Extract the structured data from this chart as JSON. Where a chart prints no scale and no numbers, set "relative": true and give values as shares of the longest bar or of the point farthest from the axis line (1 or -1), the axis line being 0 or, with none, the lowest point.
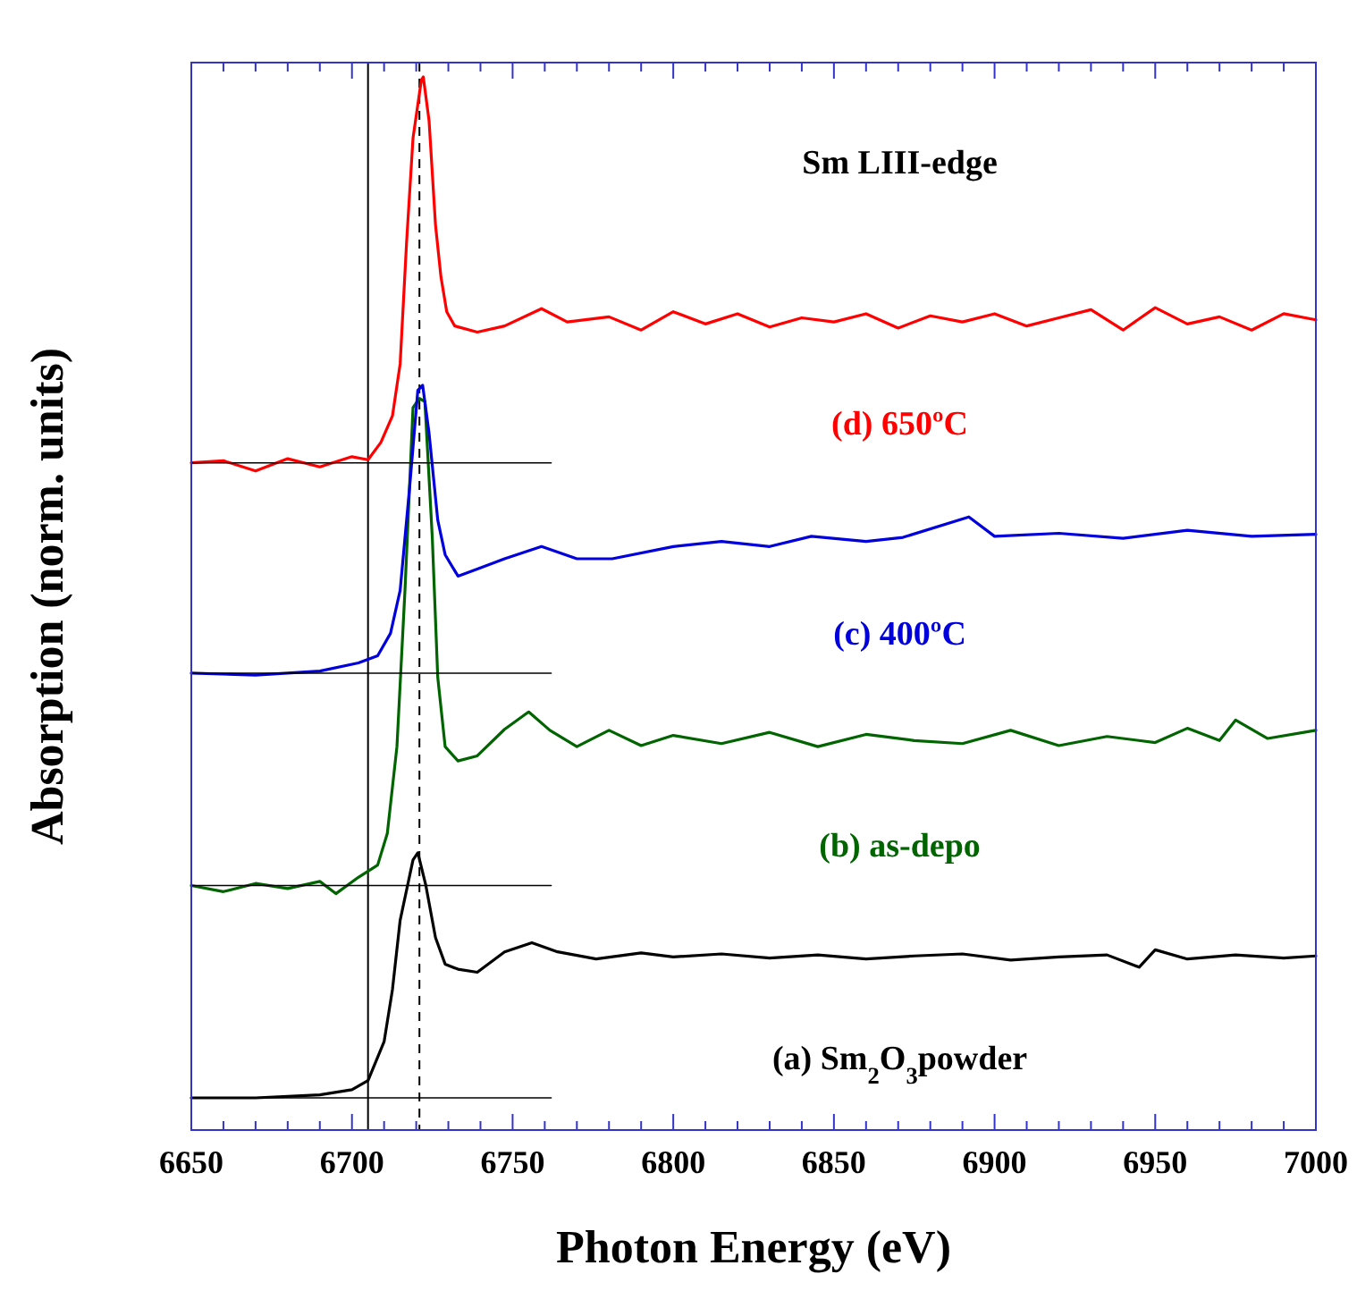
{
  "chart_data": {
    "type": "line",
    "relative": true,
    "xlabel": "Photon Energy (eV)",
    "ylabel": "Absorption (norm. units)",
    "annotations": [
      "Sm LIII-edge"
    ],
    "xlim": [
      6650,
      7000
    ],
    "xticks": [
      6650,
      {
        "value": 6660,
        "label": null
      },
      {
        "value": 6670,
        "label": null
      },
      {
        "value": 6680,
        "label": null
      },
      {
        "value": 6690,
        "label": null
      },
      6700,
      {
        "value": 6710,
        "label": null
      },
      {
        "value": 6720,
        "label": null
      },
      {
        "value": 6730,
        "label": null
      },
      {
        "value": 6740,
        "label": null
      },
      6750,
      {
        "value": 6760,
        "label": null
      },
      {
        "value": 6770,
        "label": null
      },
      {
        "value": 6780,
        "label": null
      },
      {
        "value": 6790,
        "label": null
      },
      6800,
      {
        "value": 6810,
        "label": null
      },
      {
        "value": 6820,
        "label": null
      },
      {
        "value": 6830,
        "label": null
      },
      {
        "value": 6840,
        "label": null
      },
      6850,
      {
        "value": 6860,
        "label": null
      },
      {
        "value": 6870,
        "label": null
      },
      {
        "value": 6880,
        "label": null
      },
      {
        "value": 6890,
        "label": null
      },
      6900,
      {
        "value": 6910,
        "label": null
      },
      {
        "value": 6920,
        "label": null
      },
      {
        "value": 6930,
        "label": null
      },
      {
        "value": 6940,
        "label": null
      },
      6950,
      {
        "value": 6960,
        "label": null
      },
      {
        "value": 6970,
        "label": null
      },
      {
        "value": 6980,
        "label": null
      },
      {
        "value": 6990,
        "label": null
      },
      7000
    ],
    "tick_labels": "x",
    "grid": false,
    "marker": "none",
    "line_style": "solid",
    "ref_lines": [
      {
        "axis": "x",
        "value": 6705,
        "color": "#000000",
        "line_style": "solid"
      },
      {
        "axis": "x",
        "value": 6721,
        "color": "#000000",
        "line_style": "dashed"
      }
    ],
    "series": [
      {
        "name": "(a) Sm$_{2}$O$_{3}$powder",
        "color": "#000000",
        "x": [
          6650,
          6670,
          6690,
          6700,
          6705,
          6710,
          6712.6,
          6715,
          6719,
          6720.5,
          6723,
          6726,
          6729,
          6733,
          6739,
          6747.5,
          6756,
          6764,
          6776,
          6790,
          6800,
          6815,
          6830,
          6845,
          6860,
          6875,
          6890,
          6905,
          6920,
          6935,
          6945,
          6950,
          6960,
          6975,
          6990,
          7000
        ],
        "values": [
          0,
          0,
          0.003,
          0.008,
          0.017,
          0.055,
          0.106,
          0.174,
          0.233,
          0.24,
          0.208,
          0.157,
          0.131,
          0.126,
          0.123,
          0.143,
          0.152,
          0.143,
          0.136,
          0.142,
          0.138,
          0.141,
          0.137,
          0.14,
          0.136,
          0.139,
          0.141,
          0.135,
          0.138,
          0.14,
          0.128,
          0.145,
          0.136,
          0.14,
          0.137,
          0.139
        ]
      },
      {
        "name": "(b) as-depo",
        "color": "#006400",
        "x": [
          6650,
          6660,
          6670,
          6680,
          6690,
          6695,
          6702,
          6708,
          6711,
          6714,
          6716.5,
          6719,
          6721,
          6722.7,
          6725,
          6726.7,
          6729,
          6733,
          6739,
          6747.5,
          6755,
          6761.6,
          6770,
          6780,
          6790,
          6800,
          6815,
          6830,
          6845,
          6860,
          6875,
          6890,
          6905,
          6920,
          6935,
          6950,
          6960,
          6970,
          6975,
          6985,
          7000
        ],
        "values": [
          0.208,
          0.202,
          0.21,
          0.205,
          0.212,
          0.2,
          0.216,
          0.228,
          0.259,
          0.344,
          0.497,
          0.676,
          0.685,
          0.682,
          0.549,
          0.412,
          0.344,
          0.33,
          0.335,
          0.361,
          0.378,
          0.36,
          0.344,
          0.36,
          0.345,
          0.355,
          0.347,
          0.358,
          0.344,
          0.356,
          0.35,
          0.347,
          0.36,
          0.345,
          0.354,
          0.348,
          0.362,
          0.35,
          0.37,
          0.352,
          0.36
        ]
      },
      {
        "name": "(c) 400ºC",
        "color": "#0000dd",
        "x": [
          6650,
          6670,
          6690,
          6702,
          6708,
          6712,
          6715,
          6718,
          6720.5,
          6722,
          6724,
          6726.7,
          6729,
          6733,
          6739,
          6747.5,
          6759,
          6770,
          6781,
          6800,
          6815,
          6830,
          6843,
          6860,
          6871.5,
          6892,
          6900,
          6920,
          6940,
          6960,
          6980,
          7000
        ],
        "values": [
          0.416,
          0.414,
          0.418,
          0.426,
          0.433,
          0.455,
          0.497,
          0.6,
          0.693,
          0.698,
          0.651,
          0.566,
          0.532,
          0.511,
          0.518,
          0.528,
          0.54,
          0.528,
          0.528,
          0.54,
          0.545,
          0.54,
          0.55,
          0.545,
          0.549,
          0.569,
          0.55,
          0.553,
          0.548,
          0.556,
          0.55,
          0.552
        ]
      },
      {
        "name": "(d) 650ºC",
        "color": "#ff0000",
        "x": [
          6650,
          6660,
          6670,
          6680,
          6690,
          6700,
          6705,
          6709,
          6712.6,
          6715,
          6717,
          6719,
          6721.6,
          6722.2,
          6724,
          6726,
          6727.7,
          6729.5,
          6732,
          6739,
          6747.5,
          6759,
          6767,
          6780,
          6790,
          6800,
          6810,
          6820,
          6830,
          6840,
          6850,
          6860,
          6870,
          6880,
          6890,
          6900,
          6910,
          6920,
          6930,
          6940,
          6950,
          6960,
          6970,
          6980,
          6990,
          7000
        ],
        "values": [
          0.622,
          0.624,
          0.614,
          0.626,
          0.618,
          0.628,
          0.625,
          0.642,
          0.668,
          0.719,
          0.838,
          0.94,
          0.997,
          1,
          0.957,
          0.855,
          0.804,
          0.77,
          0.756,
          0.75,
          0.756,
          0.773,
          0.76,
          0.765,
          0.752,
          0.77,
          0.758,
          0.768,
          0.755,
          0.764,
          0.76,
          0.768,
          0.754,
          0.766,
          0.76,
          0.768,
          0.756,
          0.764,
          0.772,
          0.752,
          0.774,
          0.758,
          0.765,
          0.752,
          0.768,
          0.762
        ]
      },
      {
        "type": "line",
        "color": "#000000",
        "x": [
          6650,
          6762
        ],
        "values": [
          0,
          0
        ]
      },
      {
        "type": "line",
        "color": "#000000",
        "x": [
          6650,
          6762
        ],
        "values": [
          0.208,
          0.208
        ]
      },
      {
        "type": "line",
        "color": "#000000",
        "x": [
          6650,
          6762
        ],
        "values": [
          0.416,
          0.416
        ]
      },
      {
        "type": "line",
        "color": "#000000",
        "x": [
          6650,
          6762
        ],
        "values": [
          0.622,
          0.622
        ]
      }
    ]
  }
}
